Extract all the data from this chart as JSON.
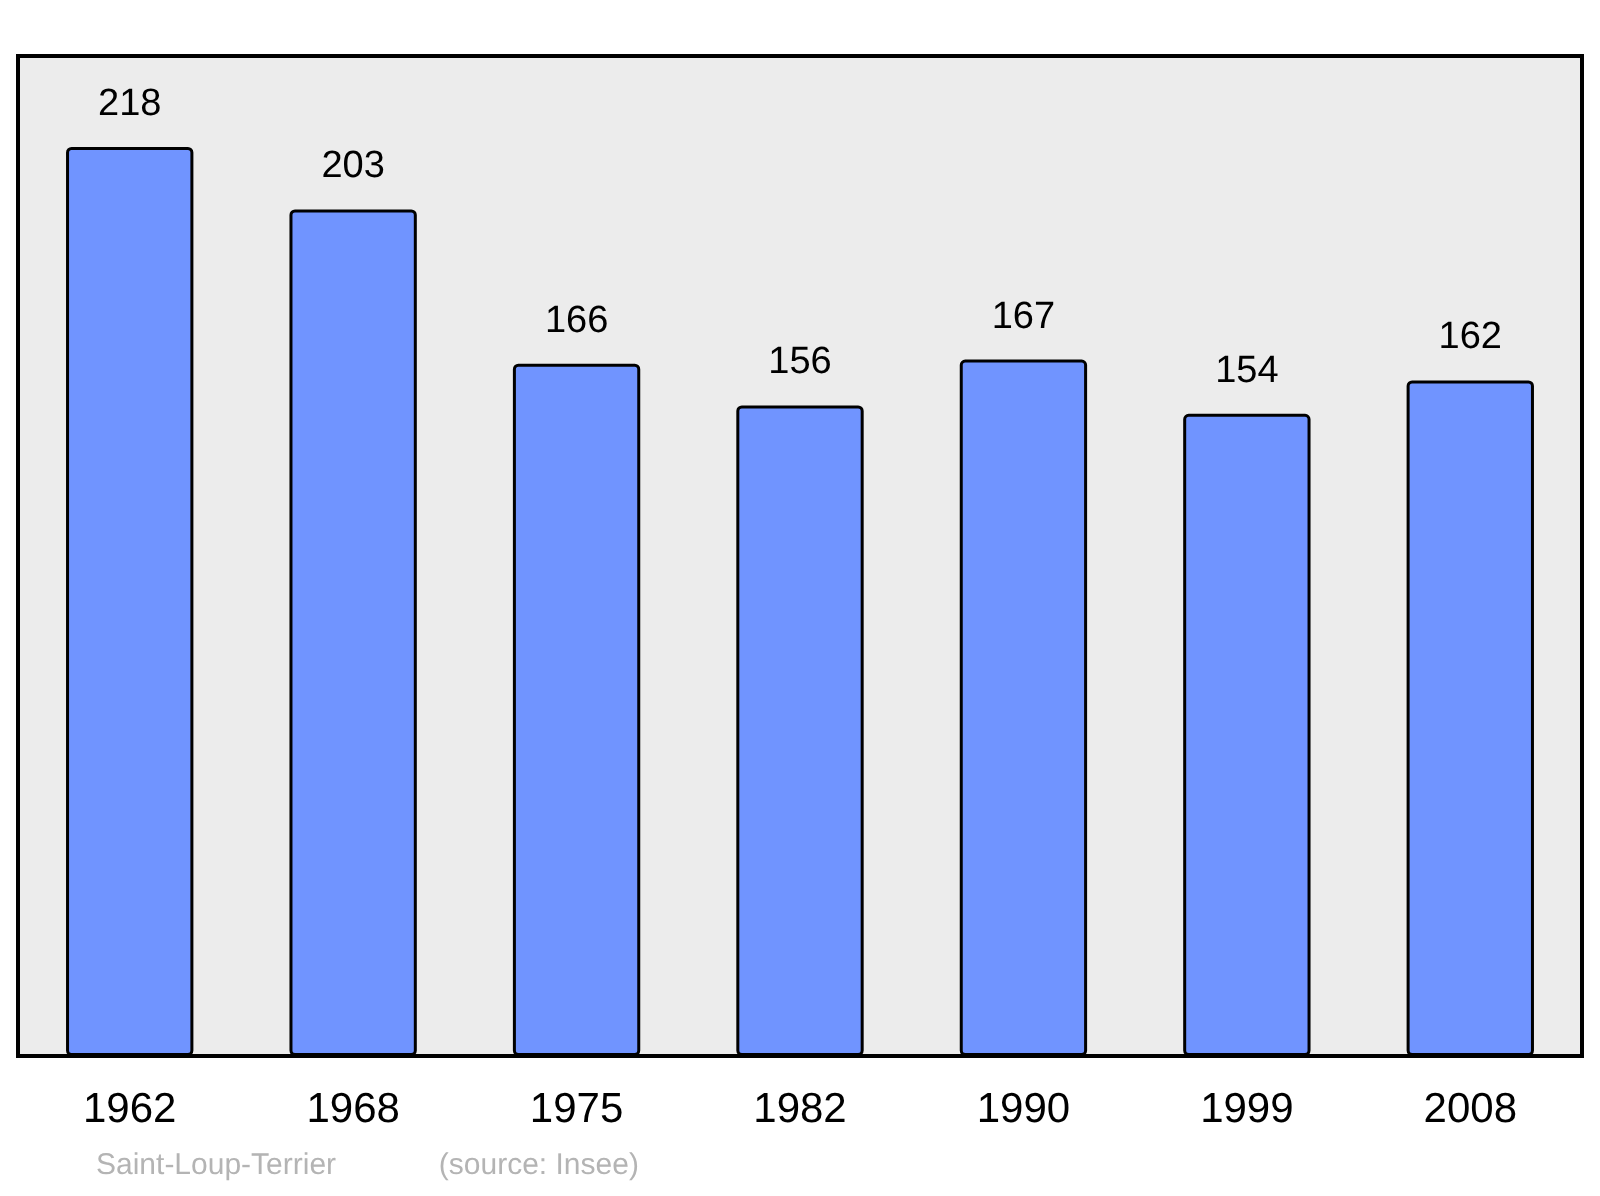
{
  "chart_data": {
    "type": "bar",
    "categories": [
      "1962",
      "1968",
      "1975",
      "1982",
      "1990",
      "1999",
      "2008"
    ],
    "values": [
      218,
      203,
      166,
      156,
      167,
      154,
      162
    ],
    "color": "#7094ff",
    "data_labels": true,
    "annotations": [
      "Saint-Loup-Terrier",
      "(source: Insee)"
    ]
  }
}
